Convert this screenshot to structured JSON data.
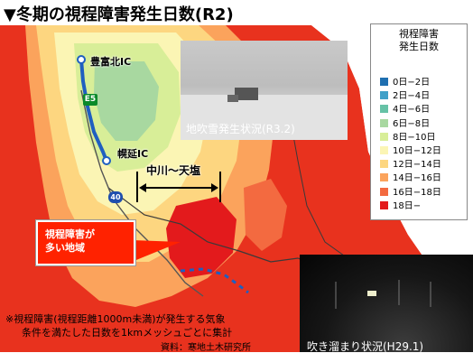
{
  "title": "▼冬期の視程障害発生日数(R2)",
  "legend": {
    "title_line1": "視程障害",
    "title_line2": "発生日数",
    "items": [
      {
        "label": "0日−2日",
        "color": "#1f6fb0"
      },
      {
        "label": "2日−4日",
        "color": "#3fa0c8"
      },
      {
        "label": "4日−6日",
        "color": "#66c2a6"
      },
      {
        "label": "6日−8日",
        "color": "#a8d8a0"
      },
      {
        "label": "8日−10日",
        "color": "#d8ee98"
      },
      {
        "label": "10日−12日",
        "color": "#fbf5b4"
      },
      {
        "label": "12日−14日",
        "color": "#fdd680"
      },
      {
        "label": "14日−16日",
        "color": "#fba35c"
      },
      {
        "label": "16日−18日",
        "color": "#f36a40"
      },
      {
        "label": "18日−",
        "color": "#e31a1c"
      }
    ]
  },
  "photos": {
    "top_caption": "地吹雪発生状況(R3.2)",
    "bottom_caption": "吹き溜まり状況(H29.1)"
  },
  "map_labels": {
    "ic_north": "豊富北IC",
    "ic_south": "幌延IC",
    "e5": "E5",
    "route40": "40",
    "section": "中川〜天塩"
  },
  "callout": {
    "line1": "視程障害が",
    "line2": "多い地域"
  },
  "note": {
    "line1": "※視程障害(視程距離1000m未満)が発生する気象",
    "line2": "条件を満たした日数を1kmメッシュごとに集計",
    "source": "資料：寒地土木研究所"
  }
}
